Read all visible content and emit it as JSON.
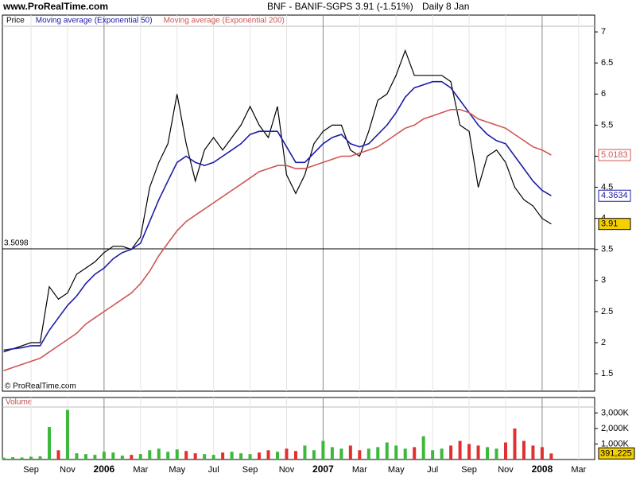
{
  "header": {
    "site": "www.ProRealTime.com",
    "symbol": "BNF - BANIF-SGPS",
    "quote": "3.91 (-1.51%)",
    "period": "Daily 8 Jan",
    "copyright": "© ProRealTime.com"
  },
  "chart_data": [
    {
      "type": "line",
      "categories": [
        null,
        null,
        null,
        "Sep",
        null,
        null,
        null,
        "Nov",
        null,
        null,
        null,
        "2006",
        null,
        null,
        null,
        "Mar",
        null,
        null,
        null,
        "May",
        null,
        null,
        null,
        "Jul",
        null,
        null,
        null,
        "Sep",
        null,
        null,
        null,
        "Nov",
        null,
        null,
        null,
        "2007",
        null,
        null,
        null,
        "Mar",
        null,
        null,
        null,
        "May",
        null,
        null,
        null,
        "Jul",
        null,
        null,
        null,
        "Sep",
        null,
        null,
        null,
        "Nov",
        null,
        null,
        null,
        "2008",
        null,
        null,
        null,
        "Mar"
      ],
      "series": [
        {
          "name": "Price",
          "color": "#000000",
          "values": [
            1.85,
            1.9,
            1.95,
            2.0,
            2.0,
            2.9,
            2.7,
            2.8,
            3.1,
            3.2,
            3.3,
            3.45,
            3.55,
            3.55,
            3.5,
            3.7,
            4.5,
            4.9,
            5.2,
            6.0,
            5.2,
            4.6,
            5.1,
            5.3,
            5.1,
            5.3,
            5.5,
            5.8,
            5.5,
            5.3,
            5.8,
            4.7,
            4.4,
            4.7,
            5.2,
            5.4,
            5.5,
            5.5,
            5.1,
            5.0,
            5.4,
            5.9,
            6.0,
            6.3,
            6.7,
            6.3,
            6.3,
            6.3,
            6.3,
            6.2,
            5.5,
            5.4,
            4.5,
            5.0,
            5.1,
            4.9,
            4.5,
            4.3,
            4.2,
            4.0,
            3.91,
            null,
            null,
            null
          ]
        },
        {
          "name": "Moving average (Exponential 50)",
          "color": "#1c1ca8",
          "values": [
            1.88,
            1.9,
            1.92,
            1.95,
            1.95,
            2.2,
            2.4,
            2.6,
            2.75,
            2.95,
            3.1,
            3.2,
            3.35,
            3.45,
            3.5,
            3.6,
            3.95,
            4.3,
            4.6,
            4.9,
            5.0,
            4.9,
            4.85,
            4.9,
            5.0,
            5.1,
            5.2,
            5.35,
            5.4,
            5.4,
            5.4,
            5.15,
            4.9,
            4.9,
            5.05,
            5.2,
            5.3,
            5.35,
            5.2,
            5.15,
            5.2,
            5.35,
            5.5,
            5.7,
            5.95,
            6.1,
            6.15,
            6.2,
            6.2,
            6.1,
            5.9,
            5.7,
            5.5,
            5.35,
            5.25,
            5.2,
            5.0,
            4.8,
            4.6,
            4.45,
            4.3634,
            null,
            null,
            null
          ]
        },
        {
          "name": "Moving average (Exponential 200)",
          "color": "#d05555",
          "values": [
            1.55,
            1.6,
            1.65,
            1.7,
            1.75,
            1.85,
            1.95,
            2.05,
            2.15,
            2.3,
            2.4,
            2.5,
            2.6,
            2.7,
            2.8,
            2.95,
            3.15,
            3.4,
            3.6,
            3.8,
            3.95,
            4.05,
            4.15,
            4.25,
            4.35,
            4.45,
            4.55,
            4.65,
            4.75,
            4.8,
            4.85,
            4.85,
            4.8,
            4.8,
            4.85,
            4.9,
            4.95,
            5.0,
            5.0,
            5.05,
            5.1,
            5.15,
            5.25,
            5.35,
            5.45,
            5.5,
            5.6,
            5.65,
            5.7,
            5.75,
            5.75,
            5.7,
            5.6,
            5.55,
            5.5,
            5.45,
            5.35,
            5.25,
            5.15,
            5.1,
            5.0183,
            null,
            null,
            null
          ]
        }
      ],
      "hline": 3.5098,
      "ylim": [
        1.22,
        7.27
      ],
      "yticks": [
        1.5,
        2,
        2.5,
        3,
        3.5,
        4,
        4.5,
        5,
        5.5,
        6,
        6.5,
        7
      ]
    },
    {
      "type": "bar",
      "title": "Volume",
      "color": "#3cb83c",
      "down_color": "#e03030",
      "values": [
        120,
        150,
        130,
        180,
        200,
        2100,
        600,
        3200,
        400,
        350,
        300,
        500,
        450,
        250,
        300,
        350,
        600,
        700,
        500,
        650,
        550,
        400,
        350,
        300,
        450,
        500,
        400,
        350,
        450,
        600,
        500,
        700,
        550,
        900,
        600,
        1200,
        800,
        700,
        900,
        600,
        700,
        800,
        1100,
        900,
        700,
        800,
        1500,
        600,
        700,
        900,
        1200,
        1000,
        900,
        800,
        700,
        1100,
        2000,
        1200,
        900,
        800,
        391.225
      ],
      "value_labels": [
        null,
        null,
        null,
        null,
        null,
        null,
        null,
        null,
        null,
        null,
        null,
        null,
        null,
        null,
        null,
        null,
        null,
        null,
        null,
        null,
        null,
        null,
        null,
        null,
        null,
        null,
        null,
        null,
        null,
        null,
        null,
        null,
        null,
        null,
        null,
        null,
        null,
        null,
        null,
        null,
        null,
        null,
        null,
        null,
        null,
        null,
        null,
        null,
        null,
        null,
        null,
        null,
        null,
        null,
        null,
        null,
        null,
        null,
        null,
        null,
        "391,225"
      ],
      "ylim": [
        0,
        4000
      ],
      "yticks": [
        {
          "value": 1000,
          "label": "1,000K"
        },
        {
          "value": 2000,
          "label": "2,000K"
        },
        {
          "value": 3000,
          "label": "3,000K"
        }
      ]
    }
  ]
}
